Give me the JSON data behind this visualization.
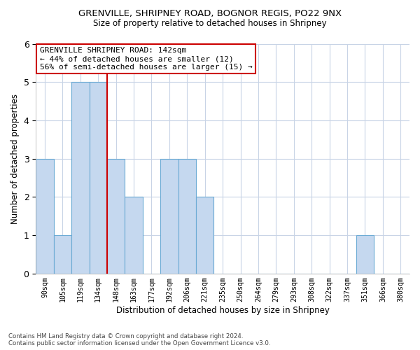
{
  "title_line1": "GRENVILLE, SHRIPNEY ROAD, BOGNOR REGIS, PO22 9NX",
  "title_line2": "Size of property relative to detached houses in Shripney",
  "xlabel": "Distribution of detached houses by size in Shripney",
  "ylabel": "Number of detached properties",
  "footnote": "Contains HM Land Registry data © Crown copyright and database right 2024.\nContains public sector information licensed under the Open Government Licence v3.0.",
  "bin_labels": [
    "90sqm",
    "105sqm",
    "119sqm",
    "134sqm",
    "148sqm",
    "163sqm",
    "177sqm",
    "192sqm",
    "206sqm",
    "221sqm",
    "235sqm",
    "250sqm",
    "264sqm",
    "279sqm",
    "293sqm",
    "308sqm",
    "322sqm",
    "337sqm",
    "351sqm",
    "366sqm",
    "380sqm"
  ],
  "counts": [
    3,
    1,
    5,
    5,
    3,
    2,
    0,
    3,
    3,
    2,
    0,
    0,
    0,
    0,
    0,
    0,
    0,
    0,
    1,
    0,
    0
  ],
  "bar_color": "#c5d8ef",
  "bar_edge_color": "#6aaad4",
  "red_line_index": 3.5,
  "ylim_max": 6,
  "yticks": [
    0,
    1,
    2,
    3,
    4,
    5,
    6
  ],
  "annotation_text": "GRENVILLE SHRIPNEY ROAD: 142sqm\n← 44% of detached houses are smaller (12)\n56% of semi-detached houses are larger (15) →",
  "annotation_box_color": "#ffffff",
  "annotation_box_edge": "#cc0000",
  "background_color": "#ffffff",
  "grid_color": "#c8d4e6"
}
